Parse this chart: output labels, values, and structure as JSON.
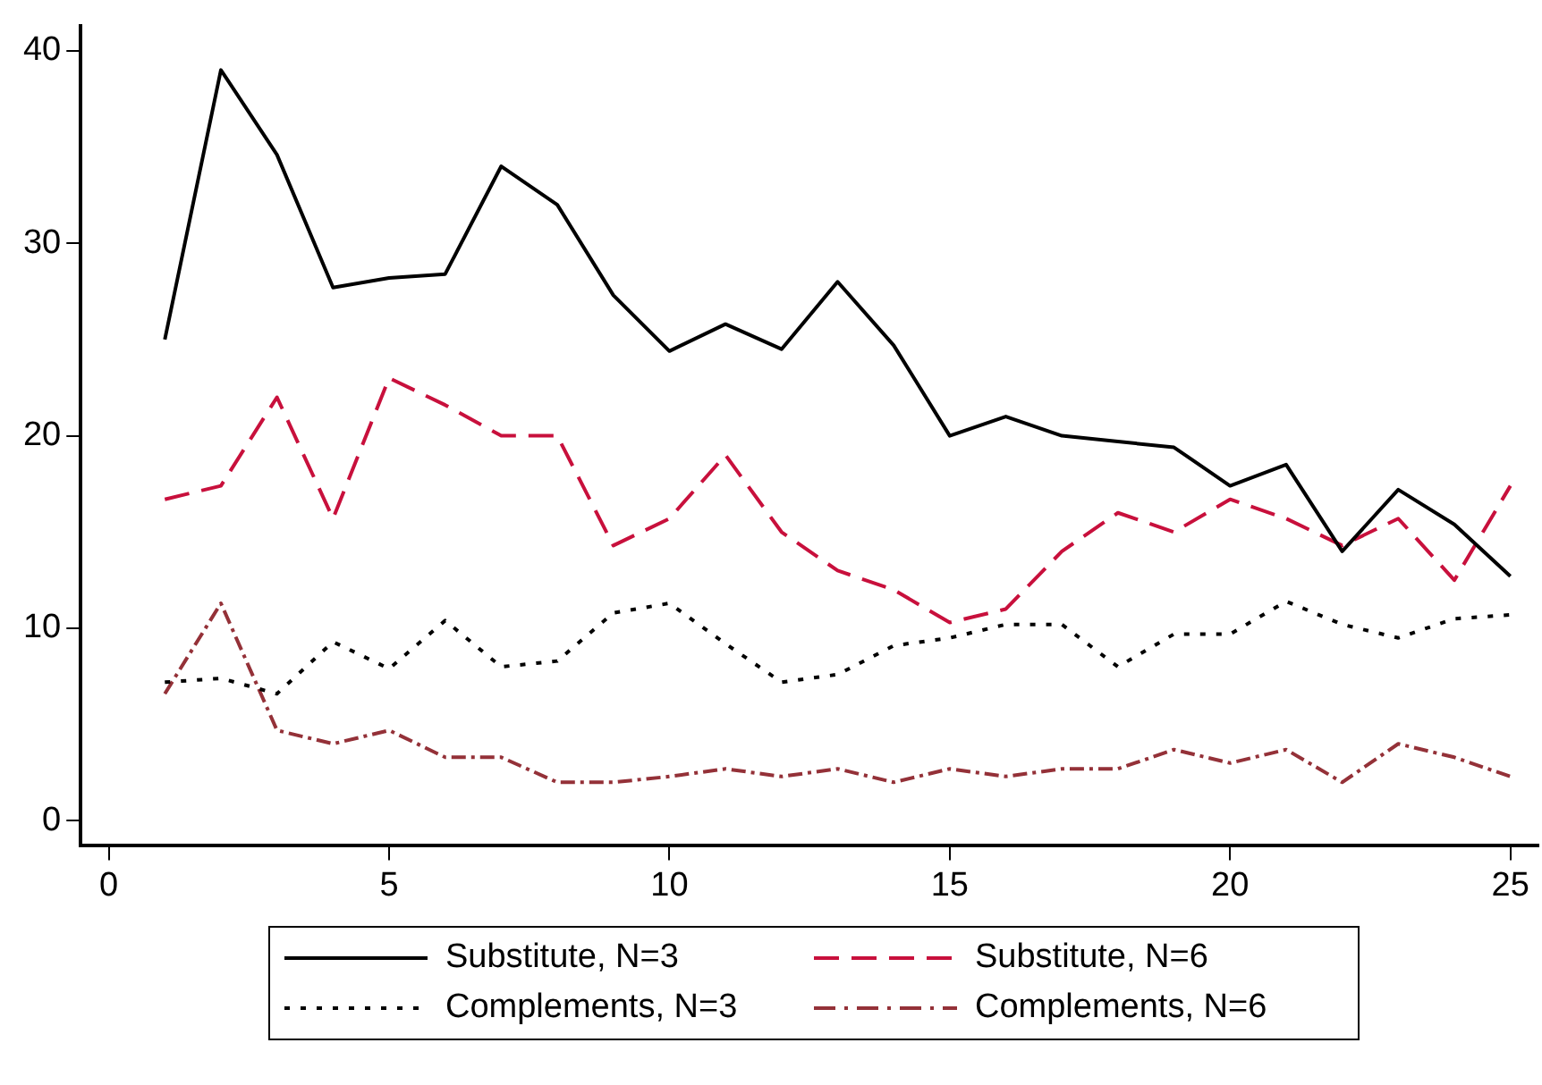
{
  "chart_data": {
    "type": "line",
    "x": [
      1,
      2,
      3,
      4,
      5,
      6,
      7,
      8,
      9,
      10,
      11,
      12,
      13,
      14,
      15,
      16,
      17,
      18,
      19,
      20,
      21,
      22,
      23,
      24,
      25
    ],
    "series": [
      {
        "name": "Substitute, N=3",
        "color": "#000000",
        "line_style": "solid",
        "values": [
          25,
          39,
          34.6,
          27.7,
          28.2,
          28.4,
          34,
          32,
          27.3,
          24.4,
          25.8,
          24.5,
          28,
          24.7,
          20,
          21,
          20,
          19.7,
          19.4,
          17.4,
          18.5,
          14,
          17.2,
          15.4,
          12.7
        ]
      },
      {
        "name": "Complements, N=3",
        "color": "#000000",
        "line_style": "dotted",
        "values": [
          7.2,
          7.4,
          6.6,
          9.3,
          7.9,
          10.4,
          8,
          8.3,
          10.8,
          11.3,
          9.2,
          7.2,
          7.6,
          9.1,
          9.5,
          10.2,
          10.2,
          8,
          9.7,
          9.7,
          11.4,
          10.2,
          9.5,
          10.5,
          10.7
        ]
      },
      {
        "name": "Substitute, N=6",
        "color": "#c8103c",
        "line_style": "dashed",
        "values": [
          16.7,
          17.4,
          22,
          15.7,
          23,
          21.6,
          20,
          20,
          14.3,
          15.7,
          19,
          15,
          13,
          12,
          10.3,
          11,
          14,
          16,
          15,
          16.7,
          15.7,
          14.3,
          15.7,
          12.5,
          17.4
        ]
      },
      {
        "name": "Complements, N=6",
        "color": "#943138",
        "line_style": "dashdot",
        "values": [
          6.6,
          11.3,
          4.7,
          4,
          4.7,
          3.3,
          3.3,
          2,
          2,
          2.3,
          2.7,
          2.3,
          2.7,
          2,
          2.7,
          2.3,
          2.7,
          2.7,
          3.7,
          3,
          3.7,
          2,
          4,
          3.3,
          2.3
        ]
      }
    ],
    "xlim": [
      -0.5,
      25.5
    ],
    "xticks": [
      0,
      5,
      10,
      15,
      20,
      25
    ],
    "ylim": [
      -1.3,
      41.3
    ],
    "yticks": [
      0,
      10,
      20,
      30,
      40
    ],
    "grid": false,
    "legend": "bottom",
    "marker": "none"
  }
}
